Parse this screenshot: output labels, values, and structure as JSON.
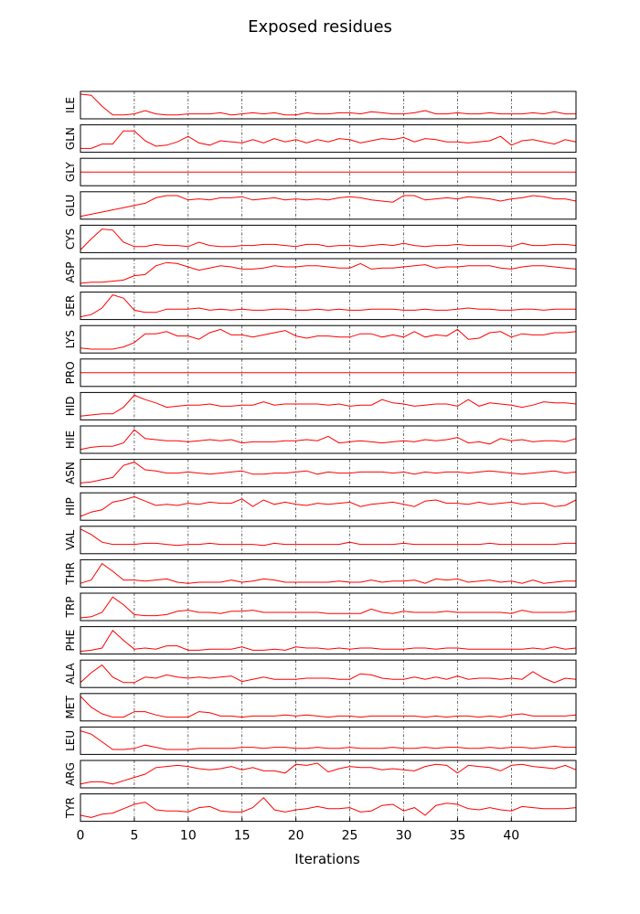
{
  "chart_data": {
    "type": "line",
    "title": "Exposed residues",
    "xlabel": "Iterations",
    "ylabel": "",
    "xlim": [
      0,
      46
    ],
    "xticks": [
      0,
      5,
      10,
      15,
      20,
      25,
      30,
      35,
      40
    ],
    "grid": "vertical dash-dot at x ticks",
    "line_color": "#ff0000",
    "y_scale": "per-panel normalized, no y tick labels",
    "panels": [
      {
        "name": "ILE",
        "values": [
          1.0,
          0.95,
          0.45,
          0.05,
          0.05,
          0.1,
          0.25,
          0.1,
          0.05,
          0.05,
          0.1,
          0.1,
          0.1,
          0.15,
          0.05,
          0.1,
          0.15,
          0.1,
          0.15,
          0.05,
          0.05,
          0.15,
          0.1,
          0.1,
          0.15,
          0.15,
          0.1,
          0.2,
          0.15,
          0.1,
          0.1,
          0.15,
          0.25,
          0.1,
          0.1,
          0.15,
          0.1,
          0.1,
          0.15,
          0.1,
          0.1,
          0.1,
          0.15,
          0.1,
          0.2,
          0.1,
          0.1
        ]
      },
      {
        "name": "GLN",
        "values": [
          0.05,
          0.05,
          0.25,
          0.25,
          0.85,
          0.85,
          0.4,
          0.15,
          0.2,
          0.35,
          0.6,
          0.3,
          0.2,
          0.4,
          0.35,
          0.3,
          0.45,
          0.3,
          0.5,
          0.35,
          0.45,
          0.3,
          0.45,
          0.35,
          0.5,
          0.45,
          0.3,
          0.4,
          0.5,
          0.45,
          0.55,
          0.35,
          0.5,
          0.45,
          0.35,
          0.35,
          0.3,
          0.35,
          0.4,
          0.6,
          0.2,
          0.4,
          0.45,
          0.35,
          0.25,
          0.45,
          0.35
        ]
      },
      {
        "name": "GLY",
        "values": [
          0.5,
          0.5,
          0.5,
          0.5,
          0.5,
          0.5,
          0.5,
          0.5,
          0.5,
          0.5,
          0.5,
          0.5,
          0.5,
          0.5,
          0.5,
          0.5,
          0.5,
          0.5,
          0.5,
          0.5,
          0.5,
          0.5,
          0.5,
          0.5,
          0.5,
          0.5,
          0.5,
          0.5,
          0.5,
          0.5,
          0.5,
          0.5,
          0.5,
          0.5,
          0.5,
          0.5,
          0.5,
          0.5,
          0.5,
          0.5,
          0.5,
          0.5,
          0.5,
          0.5,
          0.5,
          0.5,
          0.5
        ]
      },
      {
        "name": "GLU",
        "values": [
          0.0,
          0.1,
          0.2,
          0.3,
          0.4,
          0.5,
          0.6,
          0.85,
          0.95,
          0.95,
          0.75,
          0.8,
          0.75,
          0.85,
          0.85,
          0.9,
          0.75,
          0.8,
          0.85,
          0.75,
          0.8,
          0.75,
          0.8,
          0.75,
          0.85,
          0.9,
          0.85,
          0.75,
          0.7,
          0.65,
          0.95,
          0.95,
          0.75,
          0.8,
          0.85,
          0.8,
          0.9,
          0.85,
          0.8,
          0.7,
          0.8,
          0.85,
          0.95,
          0.9,
          0.8,
          0.8,
          0.7
        ]
      },
      {
        "name": "CYS",
        "values": [
          0.0,
          0.5,
          0.95,
          0.9,
          0.35,
          0.15,
          0.15,
          0.25,
          0.2,
          0.2,
          0.15,
          0.35,
          0.2,
          0.15,
          0.15,
          0.2,
          0.2,
          0.25,
          0.25,
          0.2,
          0.15,
          0.25,
          0.25,
          0.15,
          0.2,
          0.2,
          0.15,
          0.2,
          0.25,
          0.2,
          0.3,
          0.2,
          0.15,
          0.2,
          0.2,
          0.25,
          0.2,
          0.2,
          0.2,
          0.2,
          0.15,
          0.3,
          0.2,
          0.2,
          0.25,
          0.25,
          0.2
        ]
      },
      {
        "name": "ASP",
        "values": [
          0.0,
          0.05,
          0.05,
          0.1,
          0.15,
          0.35,
          0.4,
          0.8,
          0.95,
          0.9,
          0.75,
          0.6,
          0.7,
          0.8,
          0.75,
          0.65,
          0.65,
          0.7,
          0.8,
          0.75,
          0.75,
          0.8,
          0.8,
          0.75,
          0.7,
          0.7,
          0.9,
          0.65,
          0.7,
          0.7,
          0.75,
          0.8,
          0.85,
          0.7,
          0.75,
          0.75,
          0.8,
          0.8,
          0.8,
          0.7,
          0.65,
          0.75,
          0.8,
          0.8,
          0.75,
          0.7,
          0.65
        ]
      },
      {
        "name": "SER",
        "values": [
          0.0,
          0.1,
          0.4,
          1.0,
          0.85,
          0.3,
          0.2,
          0.2,
          0.35,
          0.35,
          0.35,
          0.4,
          0.3,
          0.35,
          0.3,
          0.35,
          0.3,
          0.3,
          0.35,
          0.35,
          0.3,
          0.3,
          0.35,
          0.3,
          0.35,
          0.3,
          0.3,
          0.35,
          0.35,
          0.35,
          0.3,
          0.3,
          0.35,
          0.3,
          0.3,
          0.35,
          0.4,
          0.35,
          0.35,
          0.3,
          0.3,
          0.35,
          0.35,
          0.3,
          0.35,
          0.35,
          0.35
        ]
      },
      {
        "name": "LYS",
        "values": [
          0.1,
          0.05,
          0.05,
          0.05,
          0.15,
          0.35,
          0.75,
          0.75,
          0.85,
          0.65,
          0.65,
          0.5,
          0.8,
          0.95,
          0.7,
          0.7,
          0.6,
          0.7,
          0.8,
          0.9,
          0.65,
          0.55,
          0.65,
          0.65,
          0.6,
          0.6,
          0.75,
          0.75,
          0.6,
          0.7,
          0.6,
          0.85,
          0.6,
          0.7,
          0.65,
          0.95,
          0.5,
          0.55,
          0.8,
          0.85,
          0.6,
          0.75,
          0.7,
          0.7,
          0.8,
          0.8,
          0.85
        ]
      },
      {
        "name": "PRO",
        "values": [
          0.5,
          0.5,
          0.5,
          0.5,
          0.5,
          0.5,
          0.5,
          0.5,
          0.5,
          0.5,
          0.5,
          0.5,
          0.5,
          0.5,
          0.5,
          0.5,
          0.5,
          0.5,
          0.5,
          0.5,
          0.5,
          0.5,
          0.5,
          0.5,
          0.5,
          0.5,
          0.5,
          0.5,
          0.5,
          0.5,
          0.5,
          0.5,
          0.5,
          0.5,
          0.5,
          0.5,
          0.5,
          0.5,
          0.5,
          0.5,
          0.5,
          0.5,
          0.5,
          0.5,
          0.5,
          0.5,
          0.5
        ]
      },
      {
        "name": "HID",
        "values": [
          0.05,
          0.1,
          0.15,
          0.15,
          0.45,
          1.0,
          0.8,
          0.65,
          0.45,
          0.5,
          0.55,
          0.55,
          0.6,
          0.5,
          0.5,
          0.55,
          0.55,
          0.7,
          0.55,
          0.6,
          0.6,
          0.6,
          0.6,
          0.55,
          0.6,
          0.5,
          0.55,
          0.55,
          0.8,
          0.65,
          0.6,
          0.5,
          0.55,
          0.6,
          0.6,
          0.5,
          0.8,
          0.5,
          0.65,
          0.6,
          0.55,
          0.45,
          0.55,
          0.7,
          0.65,
          0.65,
          0.6
        ]
      },
      {
        "name": "HIE",
        "values": [
          0.05,
          0.15,
          0.2,
          0.2,
          0.35,
          0.95,
          0.55,
          0.5,
          0.45,
          0.45,
          0.4,
          0.45,
          0.5,
          0.45,
          0.5,
          0.35,
          0.4,
          0.4,
          0.4,
          0.45,
          0.45,
          0.5,
          0.45,
          0.65,
          0.35,
          0.4,
          0.45,
          0.4,
          0.35,
          0.4,
          0.45,
          0.4,
          0.5,
          0.45,
          0.5,
          0.6,
          0.35,
          0.4,
          0.3,
          0.55,
          0.45,
          0.5,
          0.4,
          0.45,
          0.45,
          0.4,
          0.55
        ]
      },
      {
        "name": "ASN",
        "values": [
          0.05,
          0.1,
          0.2,
          0.3,
          0.85,
          1.0,
          0.65,
          0.6,
          0.5,
          0.5,
          0.55,
          0.5,
          0.45,
          0.5,
          0.55,
          0.6,
          0.45,
          0.45,
          0.5,
          0.5,
          0.55,
          0.6,
          0.45,
          0.55,
          0.5,
          0.5,
          0.55,
          0.55,
          0.55,
          0.5,
          0.55,
          0.45,
          0.55,
          0.5,
          0.55,
          0.55,
          0.5,
          0.55,
          0.6,
          0.55,
          0.5,
          0.45,
          0.5,
          0.55,
          0.6,
          0.5,
          0.55
        ]
      },
      {
        "name": "HIP",
        "values": [
          0.05,
          0.25,
          0.35,
          0.7,
          0.8,
          0.95,
          0.75,
          0.55,
          0.6,
          0.55,
          0.65,
          0.6,
          0.7,
          0.65,
          0.65,
          0.85,
          0.5,
          0.8,
          0.6,
          0.7,
          0.6,
          0.55,
          0.65,
          0.6,
          0.65,
          0.7,
          0.5,
          0.6,
          0.65,
          0.7,
          0.6,
          0.5,
          0.75,
          0.8,
          0.65,
          0.65,
          0.6,
          0.7,
          0.6,
          0.65,
          0.7,
          0.6,
          0.65,
          0.65,
          0.5,
          0.55,
          0.8
        ]
      },
      {
        "name": "VAL",
        "values": [
          1.0,
          0.75,
          0.4,
          0.3,
          0.3,
          0.3,
          0.35,
          0.35,
          0.3,
          0.25,
          0.3,
          0.3,
          0.35,
          0.3,
          0.3,
          0.3,
          0.3,
          0.25,
          0.35,
          0.3,
          0.3,
          0.3,
          0.3,
          0.3,
          0.3,
          0.4,
          0.3,
          0.3,
          0.3,
          0.3,
          0.35,
          0.3,
          0.3,
          0.3,
          0.3,
          0.3,
          0.3,
          0.3,
          0.35,
          0.3,
          0.3,
          0.3,
          0.3,
          0.3,
          0.3,
          0.35,
          0.35
        ]
      },
      {
        "name": "THR",
        "values": [
          0.05,
          0.2,
          0.95,
          0.6,
          0.2,
          0.2,
          0.15,
          0.2,
          0.25,
          0.1,
          0.05,
          0.1,
          0.1,
          0.1,
          0.2,
          0.1,
          0.15,
          0.25,
          0.2,
          0.1,
          0.1,
          0.1,
          0.1,
          0.1,
          0.15,
          0.1,
          0.1,
          0.2,
          0.1,
          0.15,
          0.15,
          0.2,
          0.05,
          0.25,
          0.2,
          0.25,
          0.1,
          0.15,
          0.2,
          0.1,
          0.15,
          0.05,
          0.2,
          0.05,
          0.1,
          0.15,
          0.15
        ]
      },
      {
        "name": "TRP",
        "values": [
          0.0,
          0.05,
          0.25,
          0.95,
          0.6,
          0.15,
          0.1,
          0.1,
          0.15,
          0.3,
          0.35,
          0.25,
          0.25,
          0.2,
          0.3,
          0.3,
          0.35,
          0.25,
          0.25,
          0.25,
          0.25,
          0.25,
          0.25,
          0.2,
          0.2,
          0.2,
          0.2,
          0.4,
          0.25,
          0.2,
          0.3,
          0.25,
          0.25,
          0.25,
          0.3,
          0.25,
          0.25,
          0.25,
          0.25,
          0.25,
          0.2,
          0.35,
          0.25,
          0.25,
          0.25,
          0.25,
          0.3
        ]
      },
      {
        "name": "PHE",
        "values": [
          0.0,
          0.05,
          0.15,
          0.95,
          0.5,
          0.1,
          0.15,
          0.1,
          0.25,
          0.25,
          0.05,
          0.05,
          0.1,
          0.1,
          0.1,
          0.2,
          0.05,
          0.05,
          0.1,
          0.05,
          0.2,
          0.15,
          0.15,
          0.1,
          0.15,
          0.1,
          0.15,
          0.15,
          0.1,
          0.1,
          0.1,
          0.15,
          0.15,
          0.1,
          0.15,
          0.15,
          0.1,
          0.1,
          0.1,
          0.1,
          0.1,
          0.1,
          0.15,
          0.1,
          0.2,
          0.1,
          0.15
        ]
      },
      {
        "name": "ALA",
        "values": [
          0.1,
          0.55,
          0.9,
          0.35,
          0.1,
          0.1,
          0.35,
          0.3,
          0.45,
          0.35,
          0.3,
          0.35,
          0.3,
          0.35,
          0.4,
          0.15,
          0.25,
          0.35,
          0.25,
          0.25,
          0.25,
          0.3,
          0.3,
          0.3,
          0.25,
          0.25,
          0.5,
          0.45,
          0.3,
          0.25,
          0.25,
          0.35,
          0.25,
          0.35,
          0.25,
          0.4,
          0.25,
          0.3,
          0.3,
          0.25,
          0.3,
          0.25,
          0.6,
          0.3,
          0.1,
          0.3,
          0.25
        ]
      },
      {
        "name": "MET",
        "values": [
          1.0,
          0.5,
          0.2,
          0.05,
          0.05,
          0.3,
          0.3,
          0.15,
          0.05,
          0.05,
          0.05,
          0.3,
          0.25,
          0.1,
          0.1,
          0.05,
          0.1,
          0.1,
          0.1,
          0.15,
          0.1,
          0.15,
          0.1,
          0.05,
          0.1,
          0.1,
          0.05,
          0.1,
          0.1,
          0.1,
          0.1,
          0.1,
          0.05,
          0.1,
          0.05,
          0.1,
          0.1,
          0.05,
          0.1,
          0.05,
          0.15,
          0.2,
          0.1,
          0.1,
          0.1,
          0.1,
          0.15
        ]
      },
      {
        "name": "LEU",
        "values": [
          0.95,
          0.8,
          0.45,
          0.1,
          0.1,
          0.15,
          0.3,
          0.2,
          0.1,
          0.1,
          0.1,
          0.15,
          0.15,
          0.15,
          0.15,
          0.2,
          0.2,
          0.15,
          0.2,
          0.2,
          0.15,
          0.15,
          0.2,
          0.15,
          0.15,
          0.2,
          0.15,
          0.15,
          0.15,
          0.2,
          0.15,
          0.15,
          0.2,
          0.15,
          0.2,
          0.2,
          0.15,
          0.15,
          0.2,
          0.15,
          0.2,
          0.2,
          0.15,
          0.2,
          0.25,
          0.2,
          0.2
        ]
      },
      {
        "name": "ARG",
        "values": [
          0.05,
          0.15,
          0.15,
          0.05,
          0.2,
          0.35,
          0.5,
          0.8,
          0.85,
          0.9,
          0.85,
          0.75,
          0.7,
          0.75,
          0.85,
          0.7,
          0.8,
          0.65,
          0.65,
          0.55,
          0.95,
          0.9,
          1.0,
          0.6,
          0.75,
          0.85,
          0.8,
          0.8,
          0.7,
          0.75,
          0.7,
          0.65,
          0.85,
          0.95,
          0.9,
          0.55,
          0.9,
          0.85,
          0.8,
          0.65,
          0.9,
          0.95,
          0.85,
          0.8,
          0.75,
          0.9,
          0.7
        ]
      },
      {
        "name": "TYR",
        "values": [
          0.15,
          0.05,
          0.2,
          0.25,
          0.45,
          0.65,
          0.75,
          0.4,
          0.35,
          0.35,
          0.3,
          0.5,
          0.55,
          0.35,
          0.3,
          0.3,
          0.5,
          0.95,
          0.4,
          0.3,
          0.4,
          0.45,
          0.55,
          0.45,
          0.45,
          0.5,
          0.3,
          0.35,
          0.6,
          0.65,
          0.35,
          0.5,
          0.15,
          0.6,
          0.7,
          0.65,
          0.45,
          0.4,
          0.5,
          0.4,
          0.35,
          0.55,
          0.5,
          0.45,
          0.45,
          0.45,
          0.5
        ]
      }
    ]
  }
}
